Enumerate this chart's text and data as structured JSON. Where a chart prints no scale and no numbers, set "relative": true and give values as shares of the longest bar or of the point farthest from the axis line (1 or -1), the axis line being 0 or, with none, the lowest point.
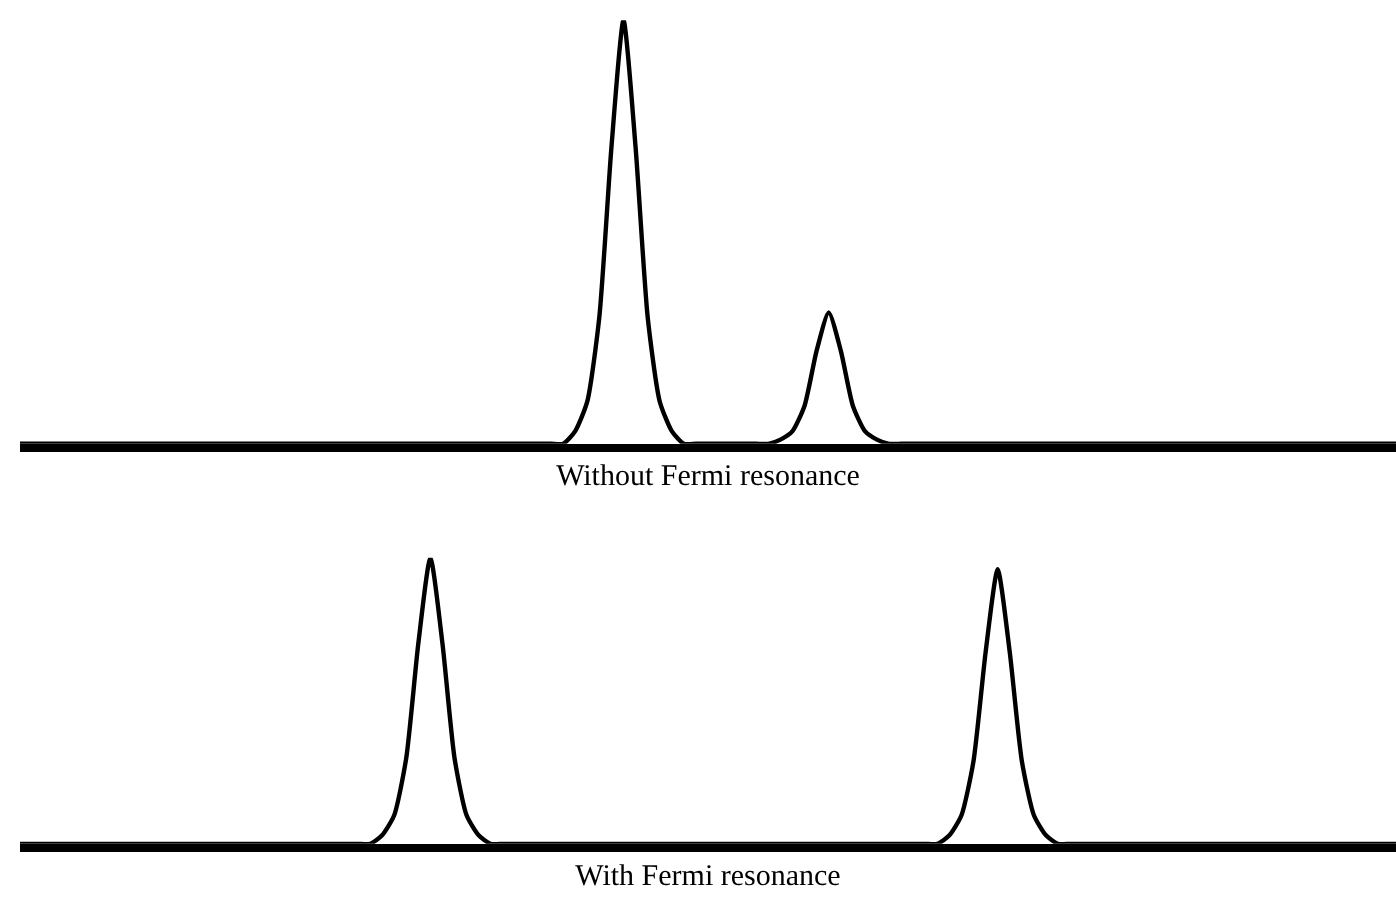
{
  "chart_data": [
    {
      "type": "line",
      "relative": true,
      "xlabel": "Without Fermi resonance",
      "categories": [
        null,
        null,
        null,
        null,
        null,
        null,
        null,
        null,
        null,
        null,
        null,
        null,
        null,
        null,
        null,
        null,
        null,
        null,
        null,
        null,
        null,
        null,
        null,
        null,
        null,
        null,
        null,
        null,
        null,
        null,
        null,
        null,
        null,
        null,
        null,
        null,
        null,
        null,
        null,
        null,
        null,
        null,
        null,
        null,
        null,
        null,
        null,
        null,
        null,
        null,
        null,
        null,
        null,
        null,
        null,
        null,
        null,
        null,
        null,
        null,
        null,
        null,
        null,
        null,
        null,
        null,
        null,
        null,
        null,
        null,
        null,
        null,
        null,
        null,
        null,
        null,
        null,
        null,
        null,
        null,
        null,
        null,
        null,
        null,
        null,
        null,
        null,
        null,
        null,
        null,
        null,
        null,
        null,
        null,
        null,
        null,
        null,
        null,
        null,
        null,
        null,
        null,
        null,
        null,
        null,
        null,
        null,
        null,
        null,
        null,
        null,
        null,
        null,
        null,
        null
      ],
      "series": [
        {
          "color": "#000000",
          "values": [
            0,
            0,
            0,
            0,
            0,
            0,
            0,
            0,
            0,
            0,
            0,
            0,
            0,
            0,
            0,
            0,
            0,
            0,
            0,
            0,
            0,
            0,
            0,
            0,
            0,
            0,
            0,
            0,
            0,
            0,
            0,
            0,
            0,
            0,
            0,
            0,
            0,
            0,
            0,
            0,
            0,
            0,
            0,
            0,
            0,
            0,
            0.03,
            0.1,
            0.3,
            0.7,
            1,
            0.7,
            0.3,
            0.1,
            0.03,
            0,
            0,
            0,
            0,
            0,
            0,
            0,
            0,
            0.01,
            0.03,
            0.09,
            0.22,
            0.31,
            0.22,
            0.09,
            0.03,
            0.01,
            0,
            0,
            0,
            0,
            0,
            0,
            0,
            0,
            0,
            0,
            0,
            0,
            0,
            0,
            0,
            0,
            0,
            0,
            0,
            0,
            0,
            0,
            0,
            0,
            0,
            0,
            0,
            0,
            0,
            0,
            0,
            0,
            0,
            0,
            0,
            0,
            0,
            0,
            0,
            0,
            0,
            0,
            0
          ]
        }
      ]
    },
    {
      "type": "line",
      "relative": true,
      "xlabel": "With Fermi resonance",
      "categories": [
        null,
        null,
        null,
        null,
        null,
        null,
        null,
        null,
        null,
        null,
        null,
        null,
        null,
        null,
        null,
        null,
        null,
        null,
        null,
        null,
        null,
        null,
        null,
        null,
        null,
        null,
        null,
        null,
        null,
        null,
        null,
        null,
        null,
        null,
        null,
        null,
        null,
        null,
        null,
        null,
        null,
        null,
        null,
        null,
        null,
        null,
        null,
        null,
        null,
        null,
        null,
        null,
        null,
        null,
        null,
        null,
        null,
        null,
        null,
        null,
        null,
        null,
        null,
        null,
        null,
        null,
        null,
        null,
        null,
        null,
        null,
        null,
        null,
        null,
        null,
        null,
        null,
        null,
        null,
        null,
        null,
        null,
        null,
        null,
        null,
        null,
        null,
        null,
        null,
        null,
        null,
        null,
        null,
        null,
        null,
        null,
        null,
        null,
        null,
        null,
        null,
        null,
        null,
        null,
        null,
        null,
        null,
        null,
        null,
        null,
        null,
        null,
        null,
        null,
        null
      ],
      "series": [
        {
          "color": "#000000",
          "values": [
            0,
            0,
            0,
            0,
            0,
            0,
            0,
            0,
            0,
            0,
            0,
            0,
            0,
            0,
            0,
            0,
            0,
            0,
            0,
            0,
            0,
            0,
            0,
            0,
            0,
            0,
            0,
            0,
            0,
            0,
            0.03,
            0.1,
            0.3,
            0.7,
            1,
            0.7,
            0.3,
            0.1,
            0.03,
            0,
            0,
            0,
            0,
            0,
            0,
            0,
            0,
            0,
            0,
            0,
            0,
            0,
            0,
            0,
            0,
            0,
            0,
            0,
            0,
            0,
            0,
            0,
            0,
            0,
            0,
            0,
            0,
            0,
            0,
            0,
            0,
            0,
            0,
            0,
            0,
            0,
            0,
            0.03,
            0.1,
            0.29,
            0.67,
            0.96,
            0.67,
            0.29,
            0.1,
            0.03,
            0,
            0,
            0,
            0,
            0,
            0,
            0,
            0,
            0,
            0,
            0,
            0,
            0,
            0,
            0,
            0,
            0,
            0,
            0,
            0,
            0,
            0,
            0,
            0,
            0,
            0,
            0,
            0,
            0
          ]
        }
      ]
    }
  ]
}
